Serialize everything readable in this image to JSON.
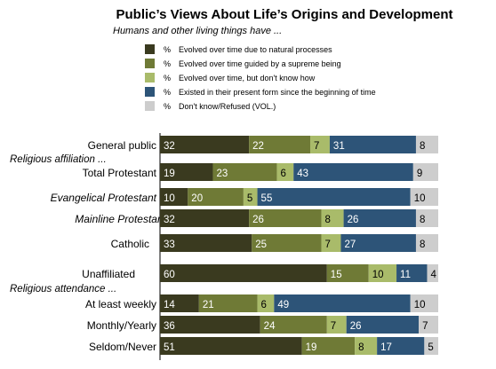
{
  "chart_data": {
    "type": "bar",
    "orientation": "horizontal",
    "stacked": true,
    "title": "Public’s Views About Life’s Origins and Development",
    "subtitle": "Humans and other living things have ...",
    "value_prefix": "%",
    "xlim": [
      0,
      100
    ],
    "grid": false,
    "legend_position": "top",
    "series": [
      {
        "name": "Evolved over time due to natural processes",
        "color": "#3a3a1f"
      },
      {
        "name": "Evolved over time guided by a supreme being",
        "color": "#6f7a36"
      },
      {
        "name": "Evolved over time, but don't know how",
        "color": "#a9bb6a"
      },
      {
        "name": "Existed in their present form since the beginning of time",
        "color": "#2d5478"
      },
      {
        "name": "Don't know/Refused (VOL.)",
        "color": "#cdcdcd"
      }
    ],
    "rows": [
      {
        "type": "bar",
        "label": "General public",
        "italic": false,
        "values": [
          32,
          22,
          7,
          31,
          8
        ]
      },
      {
        "type": "section",
        "label": "Religious affiliation ..."
      },
      {
        "type": "bar",
        "label": "Total Protestant",
        "italic": false,
        "values": [
          19,
          23,
          6,
          43,
          9
        ]
      },
      {
        "type": "bar",
        "label": "Evangelical Protestant",
        "italic": true,
        "values": [
          10,
          20,
          5,
          55,
          10
        ]
      },
      {
        "type": "bar",
        "label": "Mainline Protestant",
        "italic": true,
        "values": [
          32,
          26,
          8,
          26,
          8
        ]
      },
      {
        "type": "bar",
        "label": "Catholic",
        "italic": false,
        "values": [
          33,
          25,
          7,
          27,
          8
        ]
      },
      {
        "type": "bar",
        "label": "Unaffiliated",
        "italic": false,
        "values": [
          60,
          15,
          10,
          11,
          4
        ]
      },
      {
        "type": "section",
        "label": "Religious attendance ..."
      },
      {
        "type": "bar",
        "label": "At least weekly",
        "italic": false,
        "values": [
          14,
          21,
          6,
          49,
          10
        ]
      },
      {
        "type": "bar",
        "label": "Monthly/Yearly",
        "italic": false,
        "values": [
          36,
          24,
          7,
          26,
          7
        ]
      },
      {
        "type": "bar",
        "label": "Seldom/Never",
        "italic": false,
        "values": [
          51,
          19,
          8,
          17,
          5
        ]
      }
    ]
  }
}
